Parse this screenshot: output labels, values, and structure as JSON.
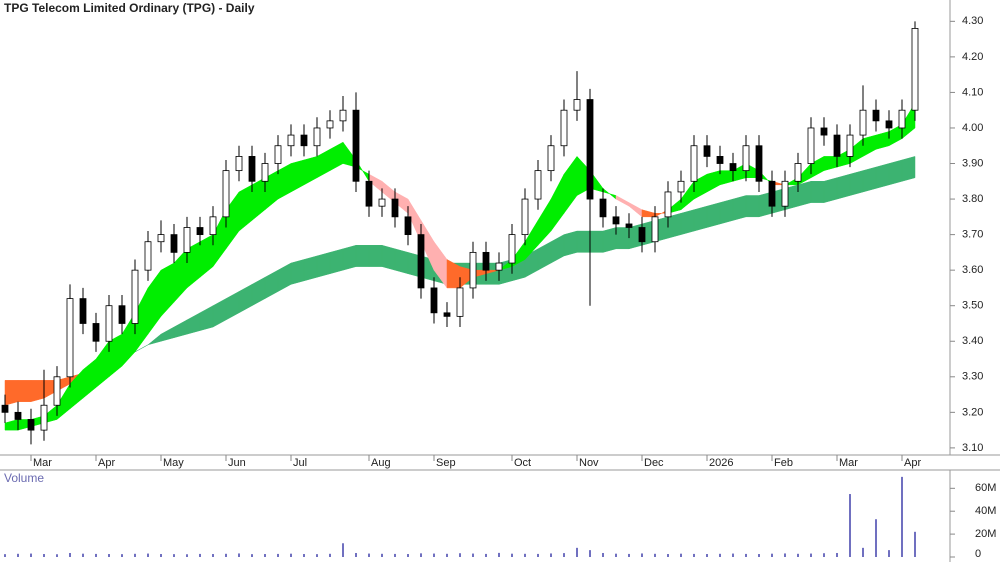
{
  "chart_data": {
    "type": "candlestick",
    "title": "TPG Telecom Limited Ordinary (TPG) - Daily",
    "categories": [
      null,
      null,
      "Mar",
      null,
      null,
      null,
      null,
      "Apr",
      null,
      null,
      null,
      null,
      "May",
      null,
      null,
      null,
      null,
      "Jun",
      null,
      null,
      null,
      null,
      "Jul",
      null,
      null,
      null,
      null,
      null,
      "Aug",
      null,
      null,
      null,
      null,
      "Sep",
      null,
      null,
      null,
      null,
      null,
      "Oct",
      null,
      null,
      null,
      null,
      "Nov",
      null,
      null,
      null,
      null,
      "Dec",
      null,
      null,
      null,
      null,
      "2026",
      null,
      null,
      null,
      null,
      "Feb",
      null,
      null,
      null,
      null,
      "Mar",
      null,
      null,
      null,
      null,
      "Apr",
      null
    ],
    "open": [
      3.22,
      3.2,
      3.18,
      3.15,
      3.22,
      3.3,
      3.52,
      3.45,
      3.4,
      3.5,
      3.45,
      3.6,
      3.68,
      3.7,
      3.65,
      3.72,
      3.7,
      3.75,
      3.88,
      3.92,
      3.85,
      3.9,
      3.95,
      3.98,
      3.95,
      4.0,
      4.02,
      4.05,
      3.85,
      3.78,
      3.8,
      3.75,
      3.7,
      3.55,
      3.48,
      3.47,
      3.55,
      3.65,
      3.6,
      3.62,
      3.7,
      3.8,
      3.88,
      3.95,
      4.05,
      4.08,
      3.8,
      3.75,
      3.73,
      3.72,
      3.68,
      3.75,
      3.82,
      3.85,
      3.95,
      3.92,
      3.9,
      3.88,
      3.95,
      3.85,
      3.78,
      3.85,
      3.9,
      4.0,
      3.98,
      3.92,
      3.98,
      4.05,
      4.02,
      4.0,
      4.05
    ],
    "high": [
      3.25,
      3.23,
      3.21,
      3.32,
      3.33,
      3.56,
      3.55,
      3.48,
      3.53,
      3.53,
      3.63,
      3.71,
      3.74,
      3.73,
      3.75,
      3.75,
      3.78,
      3.91,
      3.95,
      3.95,
      3.93,
      3.98,
      4.01,
      4.01,
      4.03,
      4.05,
      4.09,
      4.1,
      3.88,
      3.83,
      3.83,
      3.78,
      3.73,
      3.58,
      3.51,
      3.58,
      3.68,
      3.68,
      3.65,
      3.73,
      3.83,
      3.91,
      3.98,
      4.08,
      4.16,
      4.11,
      3.83,
      3.78,
      3.76,
      3.75,
      3.78,
      3.85,
      3.88,
      3.98,
      3.98,
      3.95,
      3.93,
      3.98,
      3.98,
      3.88,
      3.88,
      3.93,
      4.03,
      4.03,
      4.01,
      4.01,
      4.12,
      4.08,
      4.05,
      4.08,
      4.3
    ],
    "low": [
      3.17,
      3.15,
      3.11,
      3.12,
      3.19,
      3.27,
      3.42,
      3.37,
      3.37,
      3.42,
      3.42,
      3.57,
      3.65,
      3.62,
      3.62,
      3.67,
      3.67,
      3.72,
      3.85,
      3.82,
      3.82,
      3.87,
      3.92,
      3.92,
      3.92,
      3.97,
      3.99,
      3.82,
      3.75,
      3.75,
      3.72,
      3.67,
      3.52,
      3.45,
      3.44,
      3.44,
      3.52,
      3.57,
      3.57,
      3.59,
      3.67,
      3.77,
      3.85,
      3.92,
      4.02,
      3.5,
      3.72,
      3.7,
      3.69,
      3.65,
      3.65,
      3.72,
      3.79,
      3.82,
      3.89,
      3.87,
      3.85,
      3.85,
      3.82,
      3.75,
      3.75,
      3.82,
      3.87,
      3.95,
      3.89,
      3.89,
      3.95,
      3.99,
      3.97,
      3.97,
      4.02
    ],
    "close": [
      3.2,
      3.18,
      3.15,
      3.22,
      3.3,
      3.52,
      3.45,
      3.4,
      3.5,
      3.45,
      3.6,
      3.68,
      3.7,
      3.65,
      3.72,
      3.7,
      3.75,
      3.88,
      3.92,
      3.85,
      3.9,
      3.95,
      3.98,
      3.95,
      4.0,
      4.02,
      4.05,
      3.85,
      3.78,
      3.8,
      3.75,
      3.7,
      3.55,
      3.48,
      3.47,
      3.55,
      3.65,
      3.6,
      3.62,
      3.7,
      3.8,
      3.88,
      3.95,
      4.05,
      4.08,
      3.8,
      3.75,
      3.73,
      3.72,
      3.68,
      3.75,
      3.82,
      3.85,
      3.95,
      3.92,
      3.9,
      3.88,
      3.95,
      3.85,
      3.78,
      3.85,
      3.9,
      4.0,
      3.98,
      3.92,
      3.98,
      4.05,
      4.02,
      4.0,
      4.05,
      4.28
    ],
    "up_color": "#ffffff",
    "down_color": "#000000",
    "ribbons": [
      {
        "fast": [
          3.22,
          3.23,
          3.23,
          3.24,
          3.26,
          3.28,
          3.3,
          3.31,
          3.33,
          3.35,
          3.37,
          3.39,
          3.42,
          3.44,
          3.46,
          3.48,
          3.5,
          3.52,
          3.54,
          3.56,
          3.58,
          3.6,
          3.62,
          3.63,
          3.64,
          3.65,
          3.66,
          3.67,
          3.67,
          3.67,
          3.66,
          3.65,
          3.64,
          3.63,
          3.62,
          3.62,
          3.62,
          3.62,
          3.62,
          3.63,
          3.64,
          3.66,
          3.68,
          3.7,
          3.71,
          3.71,
          3.71,
          3.72,
          3.72,
          3.73,
          3.74,
          3.75,
          3.76,
          3.77,
          3.78,
          3.79,
          3.8,
          3.81,
          3.81,
          3.82,
          3.83,
          3.84,
          3.85,
          3.85,
          3.86,
          3.87,
          3.88,
          3.89,
          3.9,
          3.91,
          3.92
        ],
        "slow": [
          3.29,
          3.29,
          3.29,
          3.29,
          3.29,
          3.3,
          3.31,
          3.32,
          3.34,
          3.35,
          3.37,
          3.39,
          3.4,
          3.41,
          3.42,
          3.43,
          3.44,
          3.46,
          3.48,
          3.5,
          3.52,
          3.54,
          3.56,
          3.57,
          3.58,
          3.59,
          3.6,
          3.61,
          3.61,
          3.61,
          3.6,
          3.59,
          3.58,
          3.57,
          3.56,
          3.56,
          3.56,
          3.56,
          3.56,
          3.57,
          3.58,
          3.6,
          3.62,
          3.64,
          3.65,
          3.65,
          3.65,
          3.66,
          3.66,
          3.67,
          3.68,
          3.69,
          3.7,
          3.71,
          3.72,
          3.73,
          3.74,
          3.75,
          3.75,
          3.76,
          3.77,
          3.78,
          3.79,
          3.79,
          3.8,
          3.81,
          3.82,
          3.83,
          3.84,
          3.85,
          3.86
        ],
        "up_color": "#3cb371",
        "down_color": "#ff8a8a",
        "turn_color": "#ff6a2a"
      },
      {
        "fast": [
          3.17,
          3.18,
          3.18,
          3.19,
          3.22,
          3.28,
          3.32,
          3.35,
          3.4,
          3.42,
          3.48,
          3.55,
          3.6,
          3.62,
          3.66,
          3.68,
          3.7,
          3.77,
          3.82,
          3.84,
          3.86,
          3.88,
          3.9,
          3.91,
          3.92,
          3.94,
          3.96,
          3.91,
          3.85,
          3.82,
          3.79,
          3.76,
          3.68,
          3.6,
          3.55,
          3.55,
          3.58,
          3.59,
          3.6,
          3.63,
          3.68,
          3.74,
          3.8,
          3.87,
          3.92,
          3.88,
          3.83,
          3.8,
          3.78,
          3.75,
          3.75,
          3.77,
          3.8,
          3.85,
          3.87,
          3.88,
          3.88,
          3.9,
          3.88,
          3.84,
          3.84,
          3.86,
          3.9,
          3.92,
          3.92,
          3.94,
          3.97,
          3.98,
          3.99,
          4.01,
          4.07
        ],
        "slow": [
          3.15,
          3.15,
          3.16,
          3.17,
          3.18,
          3.21,
          3.24,
          3.27,
          3.3,
          3.33,
          3.37,
          3.42,
          3.47,
          3.51,
          3.55,
          3.58,
          3.61,
          3.66,
          3.71,
          3.74,
          3.77,
          3.8,
          3.82,
          3.84,
          3.86,
          3.88,
          3.9,
          3.89,
          3.87,
          3.85,
          3.82,
          3.8,
          3.74,
          3.68,
          3.63,
          3.61,
          3.6,
          3.6,
          3.6,
          3.61,
          3.63,
          3.67,
          3.71,
          3.76,
          3.81,
          3.83,
          3.82,
          3.81,
          3.79,
          3.77,
          3.76,
          3.76,
          3.77,
          3.8,
          3.82,
          3.84,
          3.85,
          3.86,
          3.86,
          3.85,
          3.84,
          3.84,
          3.86,
          3.88,
          3.89,
          3.9,
          3.92,
          3.94,
          3.95,
          3.97,
          4.0
        ],
        "up_color": "#00ee00",
        "down_color": "#ffb0b0",
        "turn_color": "#ff6a2a"
      }
    ],
    "ylim": [
      3.08,
      4.36
    ],
    "yticks": [
      {
        "value": 3.1,
        "label": "3.10"
      },
      {
        "value": 3.2,
        "label": "3.20"
      },
      {
        "value": 3.3,
        "label": "3.30"
      },
      {
        "value": 3.4,
        "label": "3.40"
      },
      {
        "value": 3.5,
        "label": "3.50"
      },
      {
        "value": 3.6,
        "label": "3.60"
      },
      {
        "value": 3.7,
        "label": "3.70"
      },
      {
        "value": 3.8,
        "label": "3.80"
      },
      {
        "value": 3.9,
        "label": "3.90"
      },
      {
        "value": 4.0,
        "label": "4.00"
      },
      {
        "value": 4.1,
        "label": "4.10"
      },
      {
        "value": 4.2,
        "label": "4.20"
      },
      {
        "value": 4.3,
        "label": "4.30"
      }
    ],
    "volume": {
      "title": "Volume",
      "color": "#7070c0",
      "values": [
        2500000,
        2800000,
        3000000,
        2600000,
        2400000,
        3500000,
        2900000,
        2700000,
        2600000,
        2500000,
        2800000,
        3000000,
        2600000,
        2500000,
        2400000,
        2700000,
        2600000,
        2800000,
        3100000,
        2500000,
        2600000,
        2700000,
        2900000,
        2600000,
        2500000,
        2800000,
        12000000,
        3500000,
        3000000,
        2800000,
        2700000,
        2600000,
        3200000,
        3000000,
        2800000,
        3300000,
        3000000,
        2700000,
        3600000,
        2900000,
        2800000,
        2700000,
        3100000,
        3400000,
        8000000,
        6000000,
        3500000,
        2900000,
        2700000,
        3100000,
        2800000,
        2600000,
        2900000,
        2700000,
        2600000,
        2800000,
        3000000,
        2700000,
        2600000,
        2900000,
        3100000,
        2800000,
        3000000,
        3300000,
        3500000,
        55000000,
        8000000,
        33000000,
        6000000,
        70000000,
        22000000
      ],
      "ylim": [
        0,
        76000000
      ],
      "yticks": [
        0,
        {
          "value": 20000000,
          "label": "20M"
        },
        {
          "value": 40000000,
          "label": "40M"
        },
        {
          "value": 60000000,
          "label": "60M"
        }
      ]
    }
  }
}
